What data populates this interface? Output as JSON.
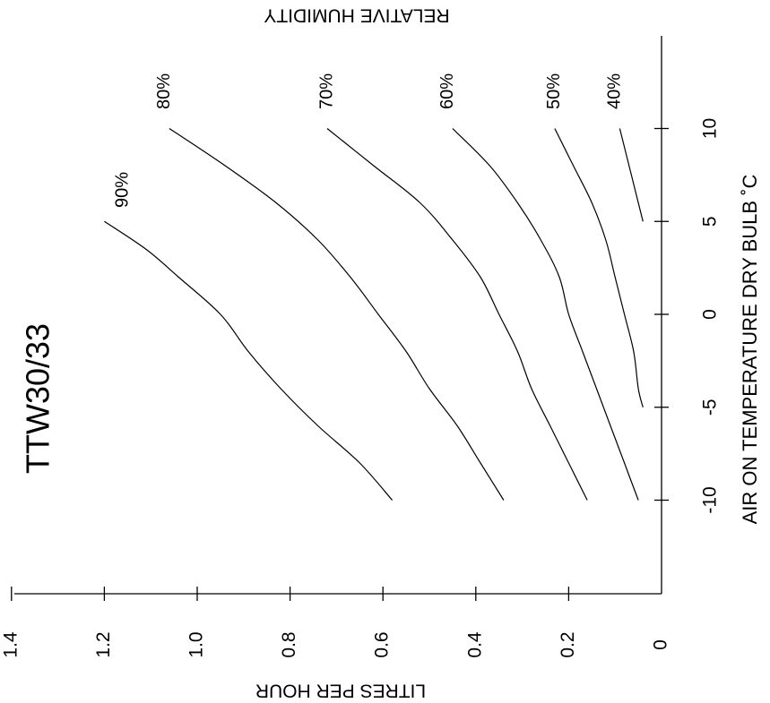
{
  "chart_data": {
    "type": "line",
    "title": "TTW30/33",
    "xlabel": "AIR ON TEMPERATURE DRY BULB ˚C",
    "ylabel": "LITRES PER HOUR",
    "series_label": "RELATIVE HUMIDITY",
    "xlim": [
      -15,
      15
    ],
    "ylim": [
      0,
      1.4
    ],
    "x_ticks": [
      -10,
      -5,
      0,
      5,
      10
    ],
    "y_ticks": [
      0,
      0.2,
      0.4,
      0.6,
      0.8,
      1.0,
      1.2,
      1.4
    ],
    "x_tick_labels": [
      "-10",
      "-5",
      "0",
      "5",
      "10"
    ],
    "y_tick_labels": [
      "0",
      "0.2",
      "0.4",
      "0.6",
      "0.8",
      "1.0",
      "1.2",
      "1.4"
    ],
    "grid": false,
    "orientation": "rotated 90° counter-clockwise",
    "series": [
      {
        "name": "90%",
        "x": [
          -10,
          -8,
          -6,
          -4,
          -2,
          0,
          2,
          3.5,
          5
        ],
        "y": [
          0.58,
          0.65,
          0.74,
          0.82,
          0.89,
          0.95,
          1.04,
          1.11,
          1.2
        ]
      },
      {
        "name": "80%",
        "x": [
          -10,
          -8,
          -6,
          -4,
          -2,
          0,
          2,
          4,
          6,
          8,
          10
        ],
        "y": [
          0.34,
          0.39,
          0.44,
          0.5,
          0.55,
          0.61,
          0.67,
          0.74,
          0.83,
          0.94,
          1.06
        ]
      },
      {
        "name": "70%",
        "x": [
          -10,
          -8,
          -6,
          -4,
          -2,
          0,
          2,
          4,
          6,
          8,
          10
        ],
        "y": [
          0.16,
          0.2,
          0.24,
          0.28,
          0.31,
          0.35,
          0.39,
          0.45,
          0.52,
          0.62,
          0.72
        ]
      },
      {
        "name": "60%",
        "x": [
          -10,
          -8,
          -6,
          -4,
          -2,
          0,
          2,
          4,
          6,
          8,
          10
        ],
        "y": [
          0.05,
          0.08,
          0.11,
          0.14,
          0.17,
          0.2,
          0.22,
          0.26,
          0.31,
          0.37,
          0.45
        ]
      },
      {
        "name": "50%",
        "x": [
          -5,
          -4,
          -2,
          0,
          2,
          4,
          6,
          8,
          10
        ],
        "y": [
          0.04,
          0.05,
          0.06,
          0.08,
          0.1,
          0.12,
          0.15,
          0.19,
          0.23
        ]
      },
      {
        "name": "40%",
        "x": [
          5,
          10
        ],
        "y": [
          0.04,
          0.09
        ]
      }
    ],
    "series_label_points": [
      {
        "name": "90%",
        "x": 6.7,
        "y": 1.16
      },
      {
        "name": "80%",
        "x": 12.0,
        "y": 1.07
      },
      {
        "name": "70%",
        "x": 12.0,
        "y": 0.72
      },
      {
        "name": "60%",
        "x": 12.0,
        "y": 0.46
      },
      {
        "name": "50%",
        "x": 12.0,
        "y": 0.23
      },
      {
        "name": "40%",
        "x": 12.0,
        "y": 0.1
      }
    ]
  }
}
